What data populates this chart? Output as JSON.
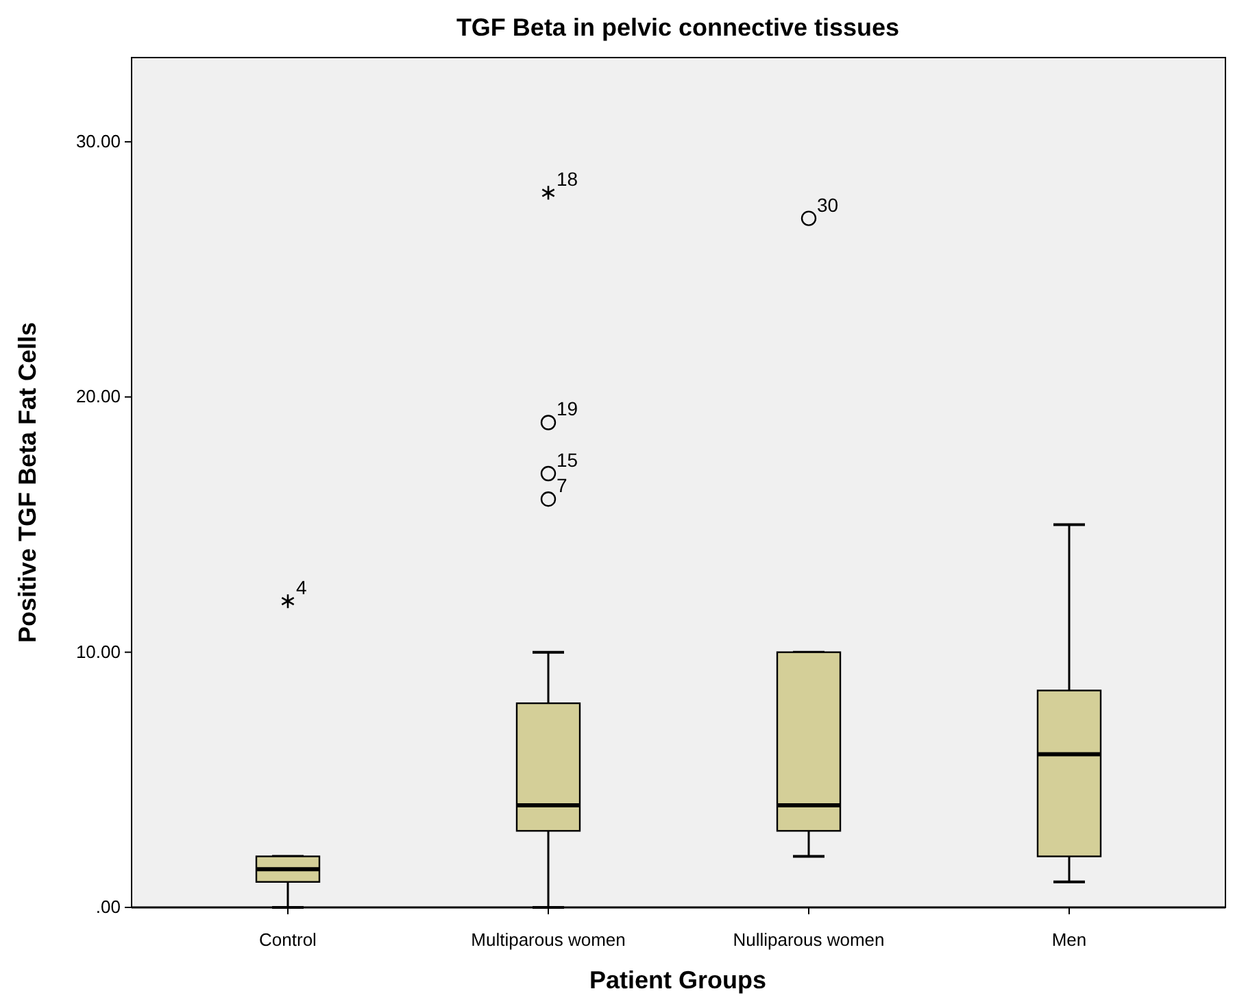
{
  "chart_data": {
    "type": "box",
    "title": "TGF Beta in pelvic connective tissues",
    "xlabel": "Patient Groups",
    "ylabel": "Positive TGF Beta Fat Cells",
    "categories": [
      "Control",
      "Multiparous women",
      "Nulliparous women",
      "Men"
    ],
    "boxes": [
      {
        "low": 0,
        "q1": 1,
        "median": 1.5,
        "q3": 2,
        "high": 2,
        "outliers": [
          12
        ]
      },
      {
        "low": 0,
        "q1": 3,
        "median": 4,
        "q3": 8,
        "high": 10,
        "outliers": [
          16,
          17,
          19,
          28
        ]
      },
      {
        "low": 2,
        "q1": 3,
        "median": 4,
        "q3": 10,
        "high": 10,
        "outliers": [
          27
        ]
      },
      {
        "low": 1,
        "q1": 2,
        "median": 6,
        "q3": 8.5,
        "high": 15
      }
    ],
    "color": "#d4cf98",
    "ylim": [
      0,
      33.3
    ],
    "yticks": [
      {
        "value": 0,
        "label": ".00"
      },
      {
        "value": 10,
        "label": "10.00"
      },
      {
        "value": 20,
        "label": "20.00"
      },
      {
        "value": 30,
        "label": "30.00"
      }
    ],
    "grid": false,
    "annotations": [
      "4",
      "7",
      "15",
      "19",
      "18",
      "30"
    ]
  }
}
